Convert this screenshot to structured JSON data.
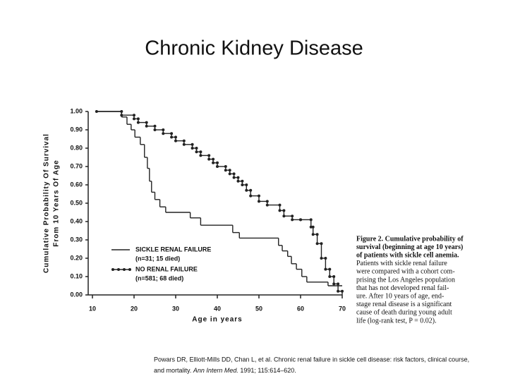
{
  "title": "Chronic Kidney Disease",
  "chart_data": {
    "type": "step",
    "ylabel": [
      "Cumulative Probability Of Survival",
      "From 10 Years Of Age"
    ],
    "xlabel": "Age in years",
    "xlim": [
      10,
      70
    ],
    "ylim": [
      0,
      1
    ],
    "xticks": [
      10,
      20,
      30,
      40,
      50,
      60,
      70
    ],
    "yticks": [
      {
        "value": 0,
        "label": "0.00"
      },
      {
        "value": 0.1,
        "label": "0.10"
      },
      {
        "value": 0.2,
        "label": "0.20"
      },
      {
        "value": 0.3,
        "label": "0.30"
      },
      {
        "value": 0.4,
        "label": "0.40"
      },
      {
        "value": 0.5,
        "label": "0.50"
      },
      {
        "value": 0.6,
        "label": "0.60"
      },
      {
        "value": 0.7,
        "label": "0.70"
      },
      {
        "value": 0.8,
        "label": "0.80"
      },
      {
        "value": 0.9,
        "label": "0.90"
      },
      {
        "value": 1,
        "label": "1.00"
      }
    ],
    "series": [
      {
        "name": "SICKLE RENAL FAILURE",
        "note": "(n=31; 15 died)",
        "color": "#222",
        "markers": false,
        "x": [
          11,
          17,
          18.3,
          19.3,
          20.2,
          21.5,
          22.5,
          23.2,
          23.7,
          24.2,
          25,
          26.2,
          27.6,
          33.5,
          36,
          43.7,
          45.3,
          54.7,
          55.6,
          56.9,
          57.8,
          59,
          60.3,
          61.5,
          66.6,
          70
        ],
        "values": [
          1.0,
          0.97,
          0.93,
          0.9,
          0.86,
          0.82,
          0.75,
          0.69,
          0.62,
          0.56,
          0.52,
          0.48,
          0.45,
          0.42,
          0.38,
          0.34,
          0.31,
          0.27,
          0.24,
          0.21,
          0.17,
          0.14,
          0.1,
          0.07,
          0.05,
          0.05
        ]
      },
      {
        "name": "NO RENAL FAILURE",
        "note": "(n=581; 68 died)",
        "color": "#222",
        "markers": true,
        "x": [
          11,
          17,
          20,
          21,
          23,
          25,
          27,
          29,
          30,
          32,
          34,
          35,
          36,
          38,
          39,
          40,
          42,
          43,
          44,
          45,
          46,
          47,
          48,
          50,
          52,
          55,
          56,
          58,
          60,
          62.5,
          63,
          64,
          65,
          66,
          67,
          68,
          69,
          70
        ],
        "values": [
          1.0,
          0.98,
          0.96,
          0.94,
          0.92,
          0.9,
          0.88,
          0.86,
          0.84,
          0.82,
          0.8,
          0.78,
          0.76,
          0.74,
          0.72,
          0.7,
          0.68,
          0.66,
          0.64,
          0.62,
          0.6,
          0.57,
          0.54,
          0.51,
          0.49,
          0.46,
          0.43,
          0.41,
          0.41,
          0.37,
          0.33,
          0.28,
          0.2,
          0.14,
          0.1,
          0.06,
          0.02,
          0.0
        ]
      }
    ]
  },
  "caption_lines": [
    "Figure 2. Cumulative probability of",
    "survival (beginning at age 10 years)",
    "of patients with sickle cell anemia.",
    "Patients with sickle renal failure",
    "were compared with a cohort com-",
    "prising the Los Angeles population",
    "that has not developed renal fail-",
    "ure. After 10 years of age, end-",
    "stage renal disease is a significant",
    "cause of death during young adult",
    "life (log-rank test, P = 0.02)."
  ],
  "citation": {
    "line1": "Powars DR, Elliott-Mills DD, Chan L, et al. Chronic renal failure in sickle cell disease: risk factors, clinical course,",
    "line2a": "and mortality. ",
    "journal": "Ann Intern Med.",
    "line2b": " 1991; 115:614–620."
  }
}
